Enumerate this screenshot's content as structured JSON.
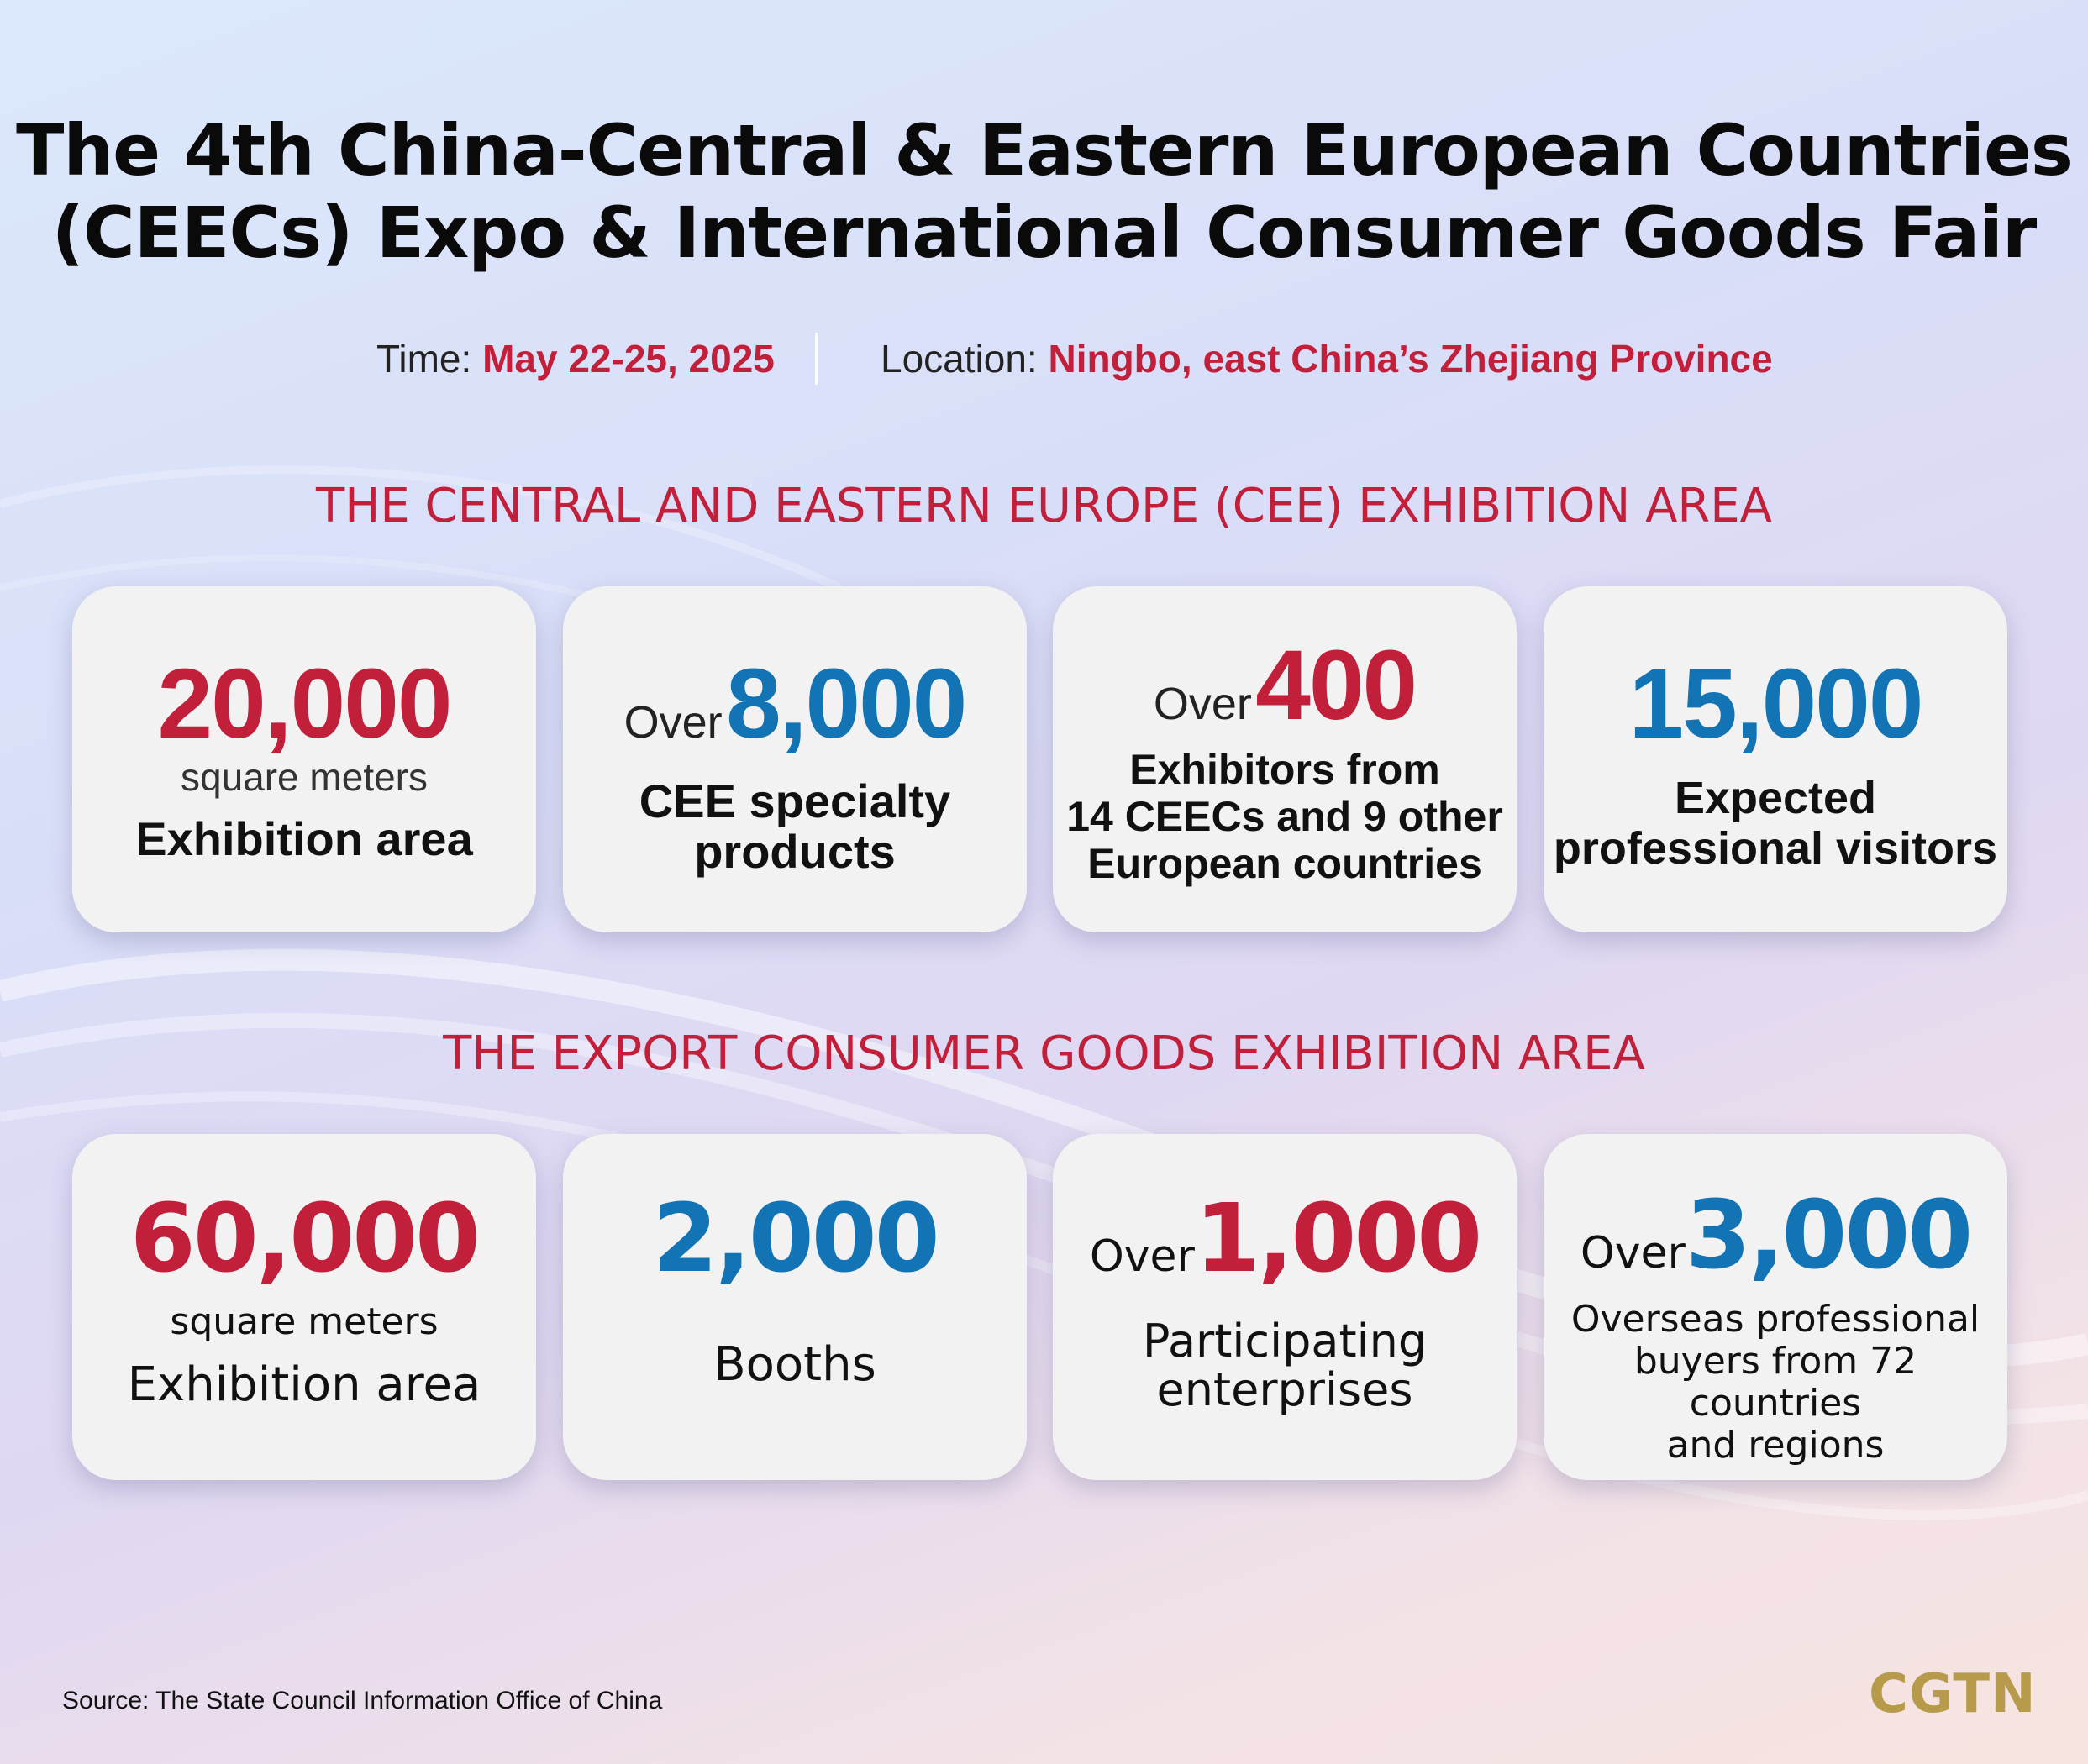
{
  "title": {
    "line1": "The 4th China-Central & Eastern European Countries",
    "line2": "(CEECs) Expo & International Consumer Goods Fair"
  },
  "meta": {
    "time_label": "Time:",
    "time_value": "May 22-25, 2025",
    "location_label": "Location:",
    "location_value": "Ningbo, east China’s Zhejiang Province"
  },
  "section1": {
    "title": "THE CENTRAL AND EASTERN EUROPE (CEE) EXHIBITION AREA",
    "cards": [
      {
        "prefix": "",
        "number": "20,000",
        "unit": "square meters",
        "label_lines": [
          "Exhibition area"
        ]
      },
      {
        "prefix": "Over",
        "number": "8,000",
        "unit": "",
        "label_lines": [
          "CEE specialty",
          "products"
        ]
      },
      {
        "prefix": "Over",
        "number": "400",
        "unit": "",
        "label_lines": [
          "Exhibitors from",
          "14 CEECs and 9 other",
          "European countries"
        ]
      },
      {
        "prefix": "",
        "number": "15,000",
        "unit": "",
        "label_lines": [
          "Expected",
          "professional visitors"
        ]
      }
    ]
  },
  "section2": {
    "title": "THE EXPORT CONSUMER GOODS EXHIBITION AREA",
    "cards": [
      {
        "prefix": "",
        "number": "60,000",
        "unit": "square meters",
        "label_lines": [
          "Exhibition area"
        ]
      },
      {
        "prefix": "",
        "number": "2,000",
        "unit": "",
        "label_lines": [
          "Booths"
        ]
      },
      {
        "prefix": "Over",
        "number": "1,000",
        "unit": "",
        "label_lines": [
          "Participating",
          "enterprises"
        ]
      },
      {
        "prefix": "Over",
        "number": "3,000",
        "unit": "",
        "label_lines": [
          "Overseas professional",
          "buyers from 72 countries",
          "and regions"
        ]
      }
    ]
  },
  "colors": {
    "accent_red": "#c11f3a",
    "accent_blue": "#1273b5",
    "logo_gold": "#b79a4a"
  },
  "footer": {
    "source": "Source: The State Council Information Office of China",
    "logo": "CGTN"
  }
}
